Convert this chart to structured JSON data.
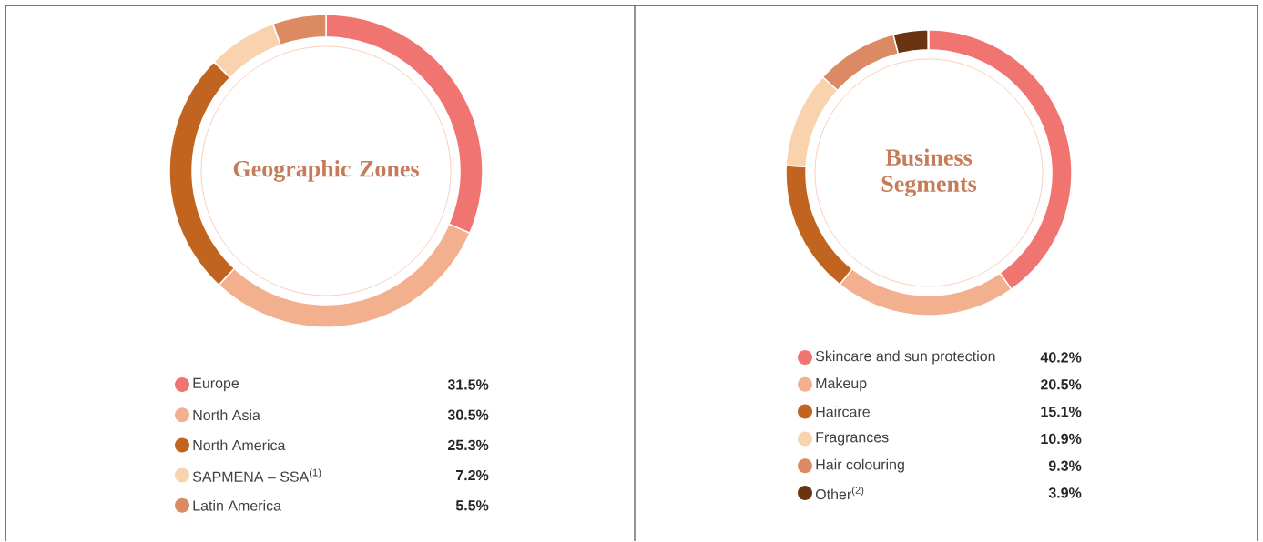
{
  "chart_data": [
    {
      "type": "donut",
      "title": "Geographic Zones",
      "legend": "bottom",
      "categories": [
        "Europe",
        "North Asia",
        "North America",
        "SAPMENA – SSA$^{(1)}$",
        "Latin America"
      ],
      "values": [
        31.5,
        30.5,
        25.3,
        7.2,
        5.5
      ],
      "value_labels": [
        "31.5%",
        "30.5%",
        "25.3%",
        "7.2%",
        "5.5%"
      ],
      "colors": [
        "#f07470",
        "#f2b08f",
        "#c0641f",
        "#f8d3ae",
        "#dc8a64"
      ]
    },
    {
      "type": "donut",
      "title": "Business Segments",
      "legend": "bottom",
      "categories": [
        "Skincare and sun protection",
        "Makeup",
        "Haircare",
        "Fragrances",
        "Hair colouring",
        "Other$^{(2)}$"
      ],
      "values": [
        40.2,
        20.5,
        15.1,
        10.9,
        9.3,
        3.9
      ],
      "value_labels": [
        "40.2%",
        "20.5%",
        "15.1%",
        "10.9%",
        "9.3%",
        "3.9%"
      ],
      "colors": [
        "#f07470",
        "#f2b08f",
        "#c0641f",
        "#f8d3ae",
        "#dc8a64",
        "#6b3410"
      ]
    }
  ]
}
